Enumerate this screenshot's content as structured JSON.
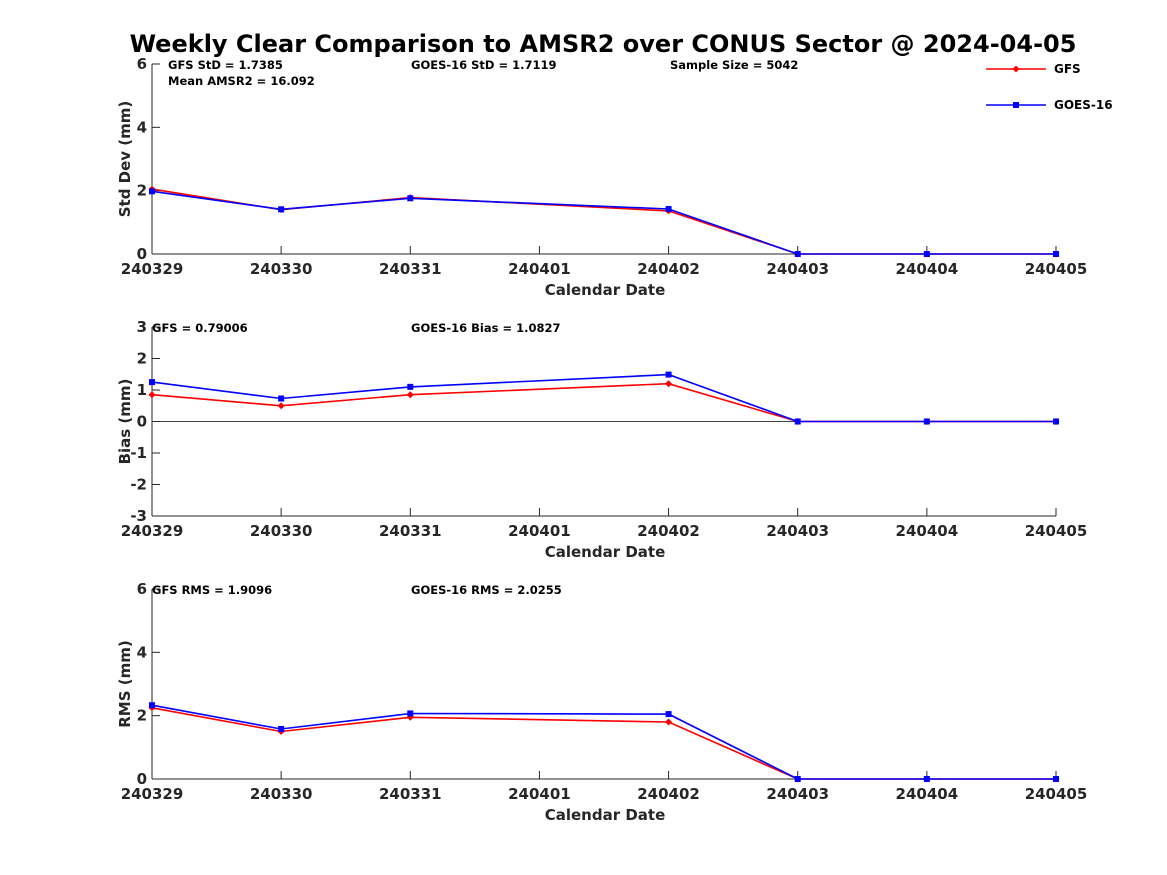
{
  "title": "Weekly Clear Comparison to AMSR2 over CONUS Sector @ 2024-04-05",
  "legend": {
    "placement": "top-right",
    "items": [
      {
        "label": "GFS",
        "color": "#ff0000",
        "marker": "diamond"
      },
      {
        "label": "GOES-16",
        "color": "#0000ff",
        "marker": "square"
      }
    ]
  },
  "chart_data": [
    {
      "type": "line",
      "xlabel": "Calendar Date",
      "ylabel": "Std Dev (mm)",
      "ylim": [
        0,
        6
      ],
      "yticks": [
        "0",
        "2",
        "4",
        "6"
      ],
      "zero_line": false,
      "categories": [
        "240329",
        "240330",
        "240331",
        "240401",
        "240402",
        "240403",
        "240404",
        "240405"
      ],
      "series": [
        {
          "name": "GFS",
          "color": "#ff0000",
          "marker": "diamond",
          "x": [
            0,
            1,
            2,
            4,
            5,
            6,
            7
          ],
          "values": [
            2.05,
            1.4,
            1.78,
            1.36,
            0,
            0,
            0
          ]
        },
        {
          "name": "GOES-16",
          "color": "#0000ff",
          "marker": "square",
          "x": [
            0,
            1,
            2,
            4,
            5,
            6,
            7
          ],
          "values": [
            1.98,
            1.41,
            1.76,
            1.42,
            0,
            0,
            0
          ]
        }
      ],
      "annotations": [
        {
          "text": "GFS StD = 1.7385",
          "col": 0,
          "row": 0
        },
        {
          "text": "Mean AMSR2 = 16.092",
          "col": 0,
          "row": 1
        },
        {
          "text": "GOES-16 StD = 1.7119",
          "col": 1,
          "row": 0
        },
        {
          "text": "Sample Size = 5042",
          "col": 2,
          "row": 0
        }
      ]
    },
    {
      "type": "line",
      "xlabel": "Calendar Date",
      "ylabel": "Bias (mm)",
      "ylim": [
        -3,
        3
      ],
      "yticks": [
        "-3",
        "-2",
        "-1",
        "0",
        "1",
        "2",
        "3"
      ],
      "zero_line": true,
      "categories": [
        "240329",
        "240330",
        "240331",
        "240401",
        "240402",
        "240403",
        "240404",
        "240405"
      ],
      "series": [
        {
          "name": "GFS",
          "color": "#ff0000",
          "marker": "diamond",
          "x": [
            0,
            1,
            2,
            4,
            5,
            6,
            7
          ],
          "values": [
            0.85,
            0.5,
            0.85,
            1.2,
            0,
            0,
            0
          ]
        },
        {
          "name": "GOES-16",
          "color": "#0000ff",
          "marker": "square",
          "x": [
            0,
            1,
            2,
            4,
            5,
            6,
            7
          ],
          "values": [
            1.25,
            0.73,
            1.1,
            1.49,
            0,
            0,
            0
          ]
        }
      ],
      "annotations": [
        {
          "text": "GFS = 0.79006",
          "col": 0,
          "row": 0
        },
        {
          "text": "GOES-16 Bias  = 1.0827",
          "col": 1,
          "row": 0
        }
      ]
    },
    {
      "type": "line",
      "xlabel": "Calendar Date",
      "ylabel": "RMS (mm)",
      "ylim": [
        0,
        6
      ],
      "yticks": [
        "0",
        "2",
        "4",
        "6"
      ],
      "zero_line": false,
      "categories": [
        "240329",
        "240330",
        "240331",
        "240401",
        "240402",
        "240403",
        "240404",
        "240405"
      ],
      "series": [
        {
          "name": "GFS",
          "color": "#ff0000",
          "marker": "diamond",
          "x": [
            0,
            1,
            2,
            4,
            5,
            6,
            7
          ],
          "values": [
            2.25,
            1.5,
            1.95,
            1.8,
            0,
            0,
            0
          ]
        },
        {
          "name": "GOES-16",
          "color": "#0000ff",
          "marker": "square",
          "x": [
            0,
            1,
            2,
            4,
            5,
            6,
            7
          ],
          "values": [
            2.33,
            1.58,
            2.07,
            2.05,
            0,
            0,
            0
          ]
        }
      ],
      "annotations": [
        {
          "text": "GFS RMS = 1.9096",
          "col": 0,
          "row": 0
        },
        {
          "text": "GOES-16 RMS = 2.0255",
          "col": 1,
          "row": 0
        }
      ]
    }
  ]
}
